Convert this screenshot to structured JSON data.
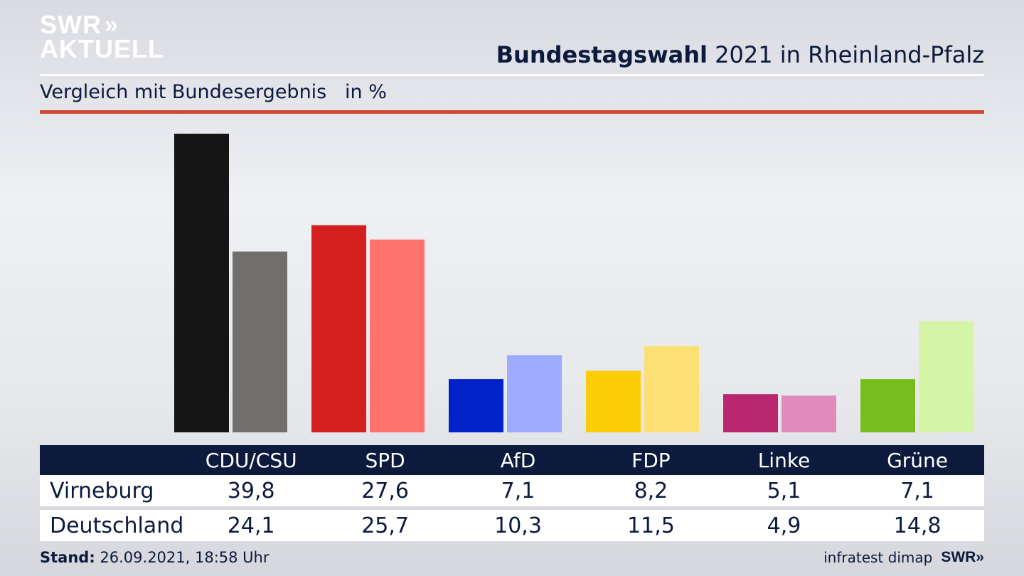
{
  "logo": {
    "line1": "SWR",
    "line2": "AKTUELL",
    "chevrons": "»"
  },
  "header": {
    "title_bold": "Bundestagswahl",
    "title_rest": " 2021 in Rheinland-Pfalz"
  },
  "subtitle": "Vergleich mit Bundesergebnis   in %",
  "footer": {
    "stand_label": "Stand:",
    "stand_value": " 26.09.2021, 18:58 Uhr",
    "source": "infratest dimap",
    "brand": "SWR»"
  },
  "colors": {
    "accent_red": "#d04a32",
    "navy": "#0b1a3d"
  },
  "chart_data": {
    "type": "bar",
    "categories": [
      "CDU/CSU",
      "SPD",
      "AfD",
      "FDP",
      "Linke",
      "Grüne"
    ],
    "series": [
      {
        "name": "Virneburg",
        "values": [
          "39,8",
          "27,6",
          "7,1",
          "8,2",
          "5,1",
          "7,1"
        ],
        "numeric": [
          39.8,
          27.6,
          7.1,
          8.2,
          5.1,
          7.1
        ],
        "colors": [
          "#151515",
          "#d41f1f",
          "#0022c8",
          "#ffcc0a",
          "#b8276f",
          "#78bd1e"
        ]
      },
      {
        "name": "Deutschland",
        "values": [
          "24,1",
          "25,7",
          "10,3",
          "11,5",
          "4,9",
          "14,8"
        ],
        "numeric": [
          24.1,
          25.7,
          10.3,
          11.5,
          4.9,
          14.8
        ],
        "colors": [
          "#716f6c",
          "#fe736c",
          "#9eacff",
          "#fde074",
          "#e08bbc",
          "#d4f5a6"
        ]
      }
    ],
    "ylim": [
      0,
      39.8
    ],
    "grid": false,
    "legend": "table-below"
  }
}
